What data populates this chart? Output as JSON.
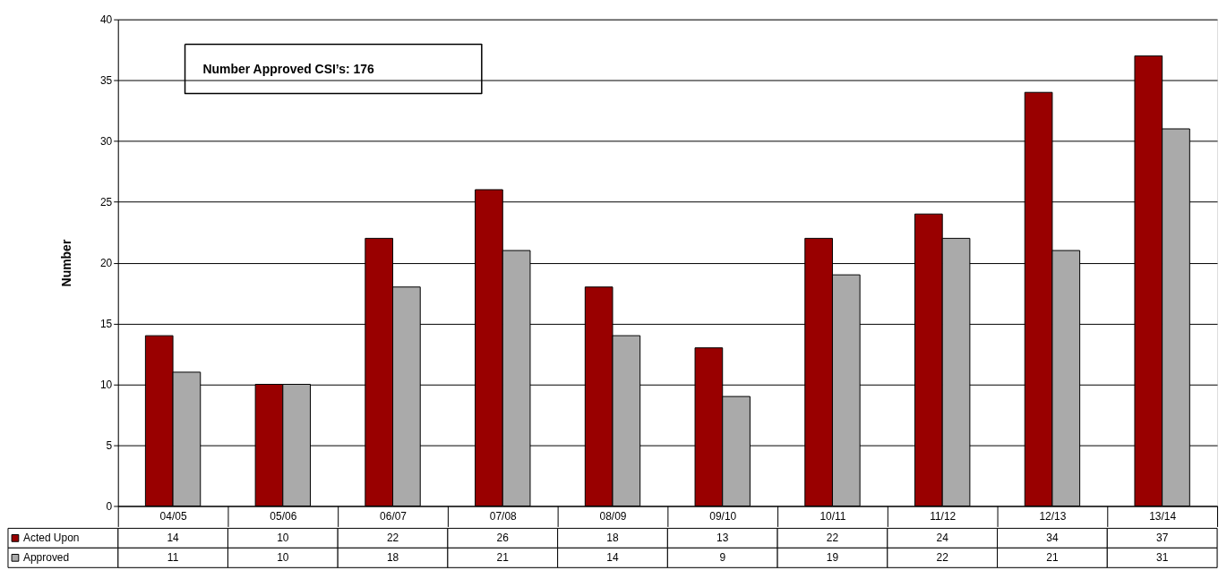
{
  "chart_data": {
    "type": "bar",
    "ylabel": "Number",
    "categories": [
      "04/05",
      "05/06",
      "06/07",
      "07/08",
      "08/09",
      "09/10",
      "10/11",
      "11/12",
      "12/13",
      "13/14"
    ],
    "series": [
      {
        "name": "Acted Upon",
        "color": "#990000",
        "values": [
          14,
          10,
          22,
          26,
          18,
          13,
          22,
          24,
          34,
          37
        ]
      },
      {
        "name": "Approved",
        "color": "#aaaaaa",
        "values": [
          11,
          10,
          18,
          21,
          14,
          9,
          19,
          22,
          21,
          31
        ]
      }
    ],
    "ylim": [
      0,
      40
    ],
    "yticks": [
      0,
      5,
      10,
      15,
      20,
      25,
      30,
      35,
      40
    ],
    "grid": "y",
    "legend": "bottom",
    "data_labels": true,
    "annotations": [
      "Number Approved CSI’s: 176"
    ]
  }
}
